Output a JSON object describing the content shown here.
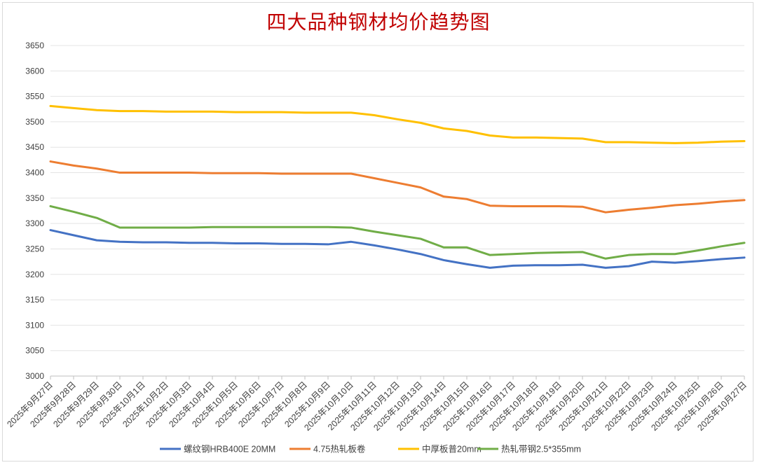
{
  "chart_data": {
    "type": "line",
    "title": "四大品种钢材均价趋势图",
    "xlabel": "",
    "ylabel": "",
    "ylim": [
      3000,
      3650
    ],
    "y_ticks": [
      3000,
      3050,
      3100,
      3150,
      3200,
      3250,
      3300,
      3350,
      3400,
      3450,
      3500,
      3550,
      3600,
      3650
    ],
    "grid": true,
    "legend_position": "bottom",
    "categories": [
      "2025年9月27日",
      "2025年9月28日",
      "2025年9月29日",
      "2025年9月30日",
      "2025年10月1日",
      "2025年10月2日",
      "2025年10月3日",
      "2025年10月4日",
      "2025年10月5日",
      "2025年10月6日",
      "2025年10月7日",
      "2025年10月8日",
      "2025年10月9日",
      "2025年10月10日",
      "2025年10月11日",
      "2025年10月12日",
      "2025年10月13日",
      "2025年10月14日",
      "2025年10月15日",
      "2025年10月16日",
      "2025年10月17日",
      "2025年10月18日",
      "2025年10月19日",
      "2025年10月20日",
      "2025年10月21日",
      "2025年10月22日",
      "2025年10月23日",
      "2025年10月24日",
      "2025年10月25日",
      "2025年10月26日",
      "2025年10月27日"
    ],
    "series": [
      {
        "name": "螺纹钢HRB400E 20MM",
        "color": "#4472c4",
        "values": [
          3287,
          3277,
          3267,
          3264,
          3263,
          3263,
          3262,
          3262,
          3261,
          3261,
          3260,
          3260,
          3259,
          3264,
          3257,
          3249,
          3240,
          3228,
          3220,
          3213,
          3217,
          3218,
          3218,
          3219,
          3213,
          3216,
          3225,
          3223,
          3226,
          3230,
          3233
        ]
      },
      {
        "name": "4.75热轧板卷",
        "color": "#ed7d31",
        "values": [
          3422,
          3414,
          3408,
          3400,
          3400,
          3400,
          3400,
          3399,
          3399,
          3399,
          3398,
          3398,
          3398,
          3398,
          3389,
          3380,
          3371,
          3353,
          3348,
          3335,
          3334,
          3334,
          3334,
          3333,
          3322,
          3327,
          3331,
          3336,
          3339,
          3343,
          3346
        ]
      },
      {
        "name": "中厚板普20mm",
        "color": "#ffc000",
        "values": [
          3531,
          3527,
          3523,
          3521,
          3521,
          3520,
          3520,
          3520,
          3519,
          3519,
          3519,
          3518,
          3518,
          3518,
          3513,
          3505,
          3498,
          3487,
          3482,
          3473,
          3469,
          3469,
          3468,
          3467,
          3460,
          3460,
          3459,
          3458,
          3459,
          3461,
          3462
        ]
      },
      {
        "name": "热轧带钢2.5*355mm",
        "color": "#70ad47",
        "values": [
          3334,
          3323,
          3311,
          3292,
          3292,
          3292,
          3292,
          3293,
          3293,
          3293,
          3293,
          3293,
          3293,
          3292,
          3284,
          3277,
          3270,
          3253,
          3253,
          3238,
          3240,
          3242,
          3243,
          3244,
          3231,
          3238,
          3240,
          3240,
          3247,
          3255,
          3262
        ]
      }
    ]
  }
}
